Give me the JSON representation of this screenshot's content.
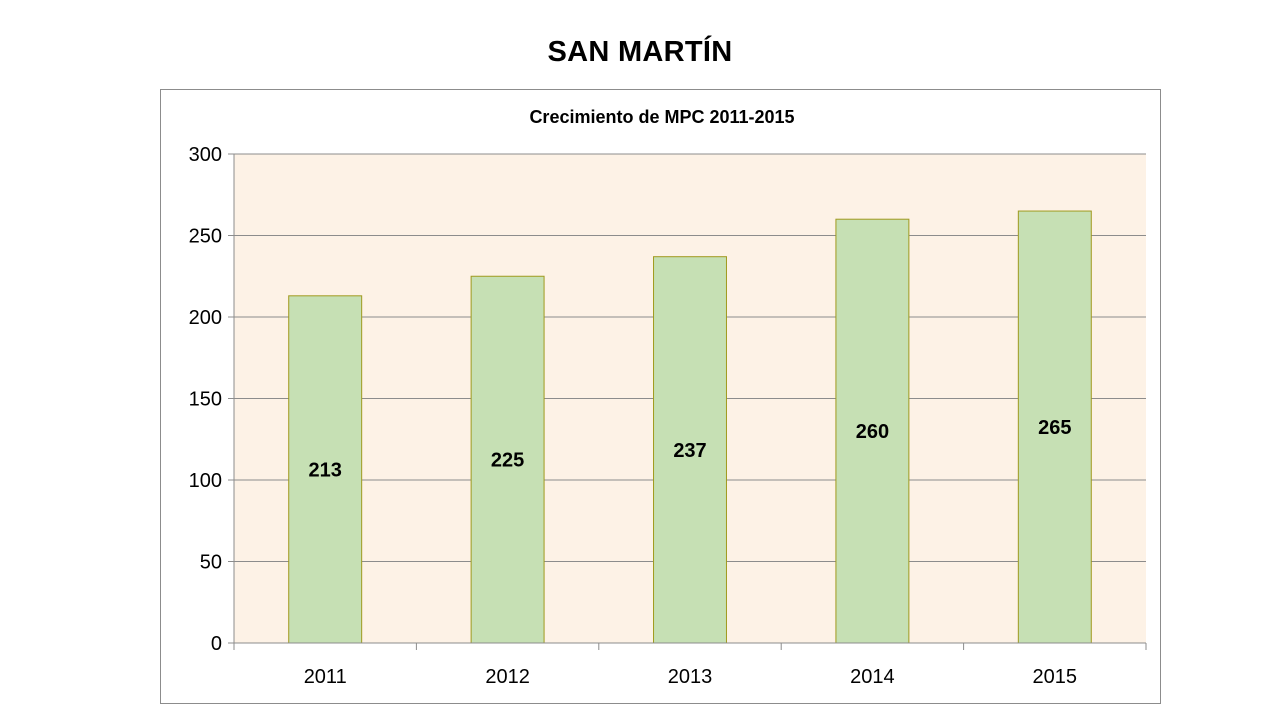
{
  "slide": {
    "title": "SAN MARTÍN"
  },
  "chart_data": {
    "type": "bar",
    "title": "Crecimiento de MPC 2011-2015",
    "xlabel": "",
    "ylabel": "",
    "categories": [
      "2011",
      "2012",
      "2013",
      "2014",
      "2015"
    ],
    "values": [
      213,
      225,
      237,
      260,
      265
    ],
    "data_labels": [
      "213",
      "225",
      "237",
      "260",
      "265"
    ],
    "data_label_position": "center",
    "ylim": [
      0,
      300
    ],
    "yticks": [
      0,
      50,
      100,
      150,
      200,
      250,
      300
    ],
    "ytick_labels": [
      "0",
      "50",
      "100",
      "150",
      "200",
      "250",
      "300"
    ],
    "grid": true,
    "legend": false,
    "colors": {
      "bar_fill": "#c6e0b4",
      "bar_stroke": "#a09a1e",
      "plot_background": "#fdf2e6",
      "gridline": "#8c8c8c",
      "axis": "#8c8c8c"
    }
  }
}
